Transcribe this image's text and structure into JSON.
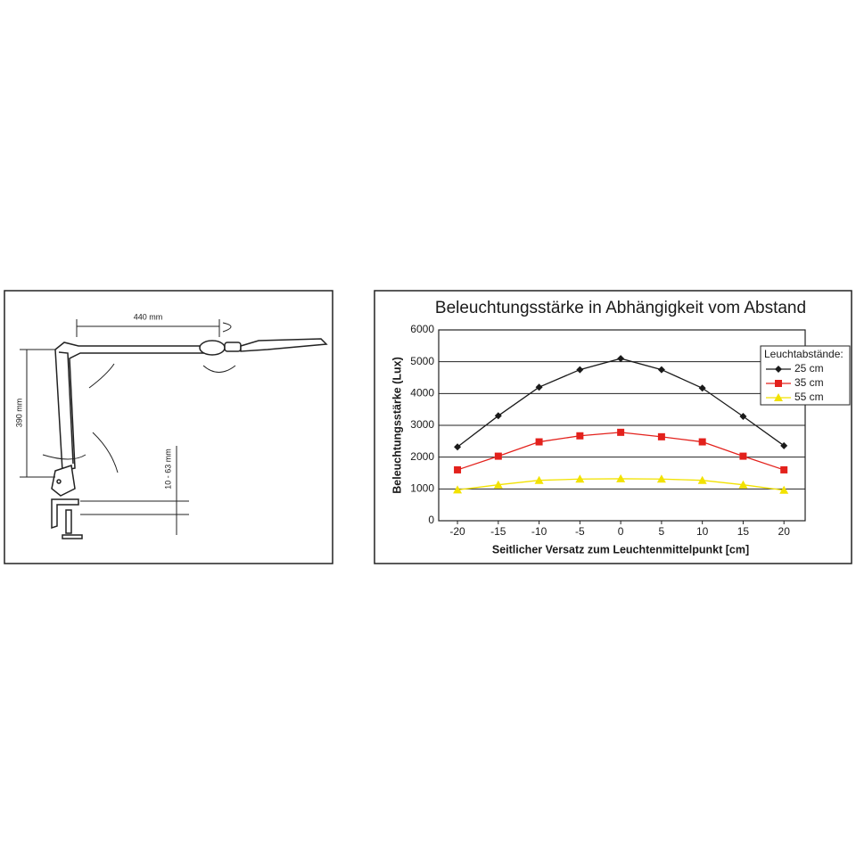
{
  "diagram": {
    "labels": [
      "440 mm",
      "390 mm",
      "10 - 63 mm"
    ]
  },
  "chart_data": {
    "type": "line",
    "title": "Beleuchtungsstärke in Abhängigkeit vom Abstand",
    "x_label": "Seitlicher Versatz zum Leuchtenmittelpunkt [cm]",
    "y_label": "Beleuchtungsstärke (Lux)",
    "legend_title": "Leuchtabstände:",
    "legend": "top-right",
    "grid": true,
    "x": [
      -20,
      -15,
      -10,
      -5,
      0,
      5,
      10,
      15,
      20
    ],
    "xlim": [
      -22.3,
      22.6
    ],
    "xticks": [
      -20,
      -15,
      -10,
      -5,
      0,
      5,
      10,
      15,
      20
    ],
    "ylim": [
      0,
      6000
    ],
    "yticks": [
      0,
      1000,
      2000,
      3000,
      4000,
      5000,
      6000
    ],
    "series": [
      {
        "name": "25 cm",
        "color": "#1a1a1a",
        "marker": "diamond",
        "values": [
          2320,
          3300,
          4200,
          4750,
          5100,
          4750,
          4170,
          3280,
          2360
        ]
      },
      {
        "name": "35 cm",
        "color": "#e3211c",
        "marker": "square",
        "values": [
          1600,
          2030,
          2480,
          2670,
          2780,
          2640,
          2480,
          2030,
          1600
        ]
      },
      {
        "name": "55 cm",
        "color": "#f2e200",
        "marker": "triangle",
        "values": [
          970,
          1130,
          1270,
          1310,
          1320,
          1310,
          1270,
          1130,
          960
        ]
      }
    ]
  }
}
